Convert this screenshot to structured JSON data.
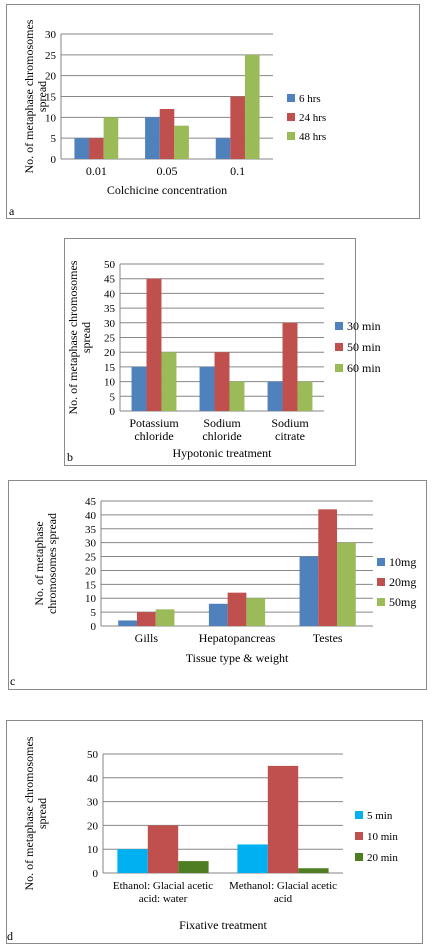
{
  "panels": [
    {
      "label": "a",
      "chart_data": {
        "type": "bar",
        "categories": [
          "0.01",
          "0.05",
          "0.1"
        ],
        "series": [
          {
            "name": "6 hrs",
            "values": [
              5,
              10,
              5
            ],
            "color": "#4f81bd"
          },
          {
            "name": "24 hrs",
            "values": [
              5,
              12,
              15
            ],
            "color": "#c0504d"
          },
          {
            "name": "48 hrs",
            "values": [
              10,
              8,
              25
            ],
            "color": "#9bbb59"
          }
        ],
        "ylabel": "No. of  metaphase chromosomes spread",
        "xlabel": "Colchicine  concentration",
        "ylim": [
          0,
          30
        ],
        "ystep": 5,
        "grid": true,
        "legend": "right"
      }
    },
    {
      "label": "b",
      "chart_data": {
        "type": "bar",
        "categories": [
          "Potassium chloride",
          "Sodium chloride",
          "Sodium citrate"
        ],
        "series": [
          {
            "name": "30 min",
            "values": [
              15,
              15,
              10
            ],
            "color": "#4f81bd"
          },
          {
            "name": "50 min",
            "values": [
              45,
              20,
              30
            ],
            "color": "#c0504d"
          },
          {
            "name": "60 min",
            "values": [
              20,
              10,
              10
            ],
            "color": "#9bbb59"
          }
        ],
        "ylabel": "No. of  metaphase chromosomes spread",
        "xlabel": "Hypotonic treatment",
        "ylim": [
          0,
          50
        ],
        "ystep": 5,
        "grid": true,
        "legend": "right"
      }
    },
    {
      "label": "c",
      "chart_data": {
        "type": "bar",
        "categories": [
          "Gills",
          "Hepatopancreas",
          "Testes"
        ],
        "series": [
          {
            "name": "10mg",
            "values": [
              2,
              8,
              25
            ],
            "color": "#4f81bd"
          },
          {
            "name": "20mg",
            "values": [
              5,
              12,
              42
            ],
            "color": "#c0504d"
          },
          {
            "name": "50mg",
            "values": [
              6,
              10,
              30
            ],
            "color": "#9bbb59"
          }
        ],
        "ylabel": "No. of  metaphase chromosomes spread",
        "xlabel": "Tissue type & weight",
        "ylim": [
          0,
          45
        ],
        "ystep": 5,
        "grid": true,
        "legend": "right"
      }
    },
    {
      "label": "d",
      "chart_data": {
        "type": "bar",
        "categories": [
          "Ethanol: Glacial acetic acid: water",
          "Methanol: Glacial acetic acid"
        ],
        "series": [
          {
            "name": "5 min",
            "values": [
              10,
              12
            ],
            "color": "#00b0f0"
          },
          {
            "name": "10 min",
            "values": [
              20,
              45
            ],
            "color": "#c0504d"
          },
          {
            "name": "20 min",
            "values": [
              5,
              2
            ],
            "color": "#4f7d22"
          }
        ],
        "ylabel": "No. of  metaphase chromosomes spread",
        "xlabel": "Fixative treatment",
        "ylim": [
          0,
          50
        ],
        "ystep": 10,
        "grid": true,
        "legend": "right"
      }
    }
  ]
}
